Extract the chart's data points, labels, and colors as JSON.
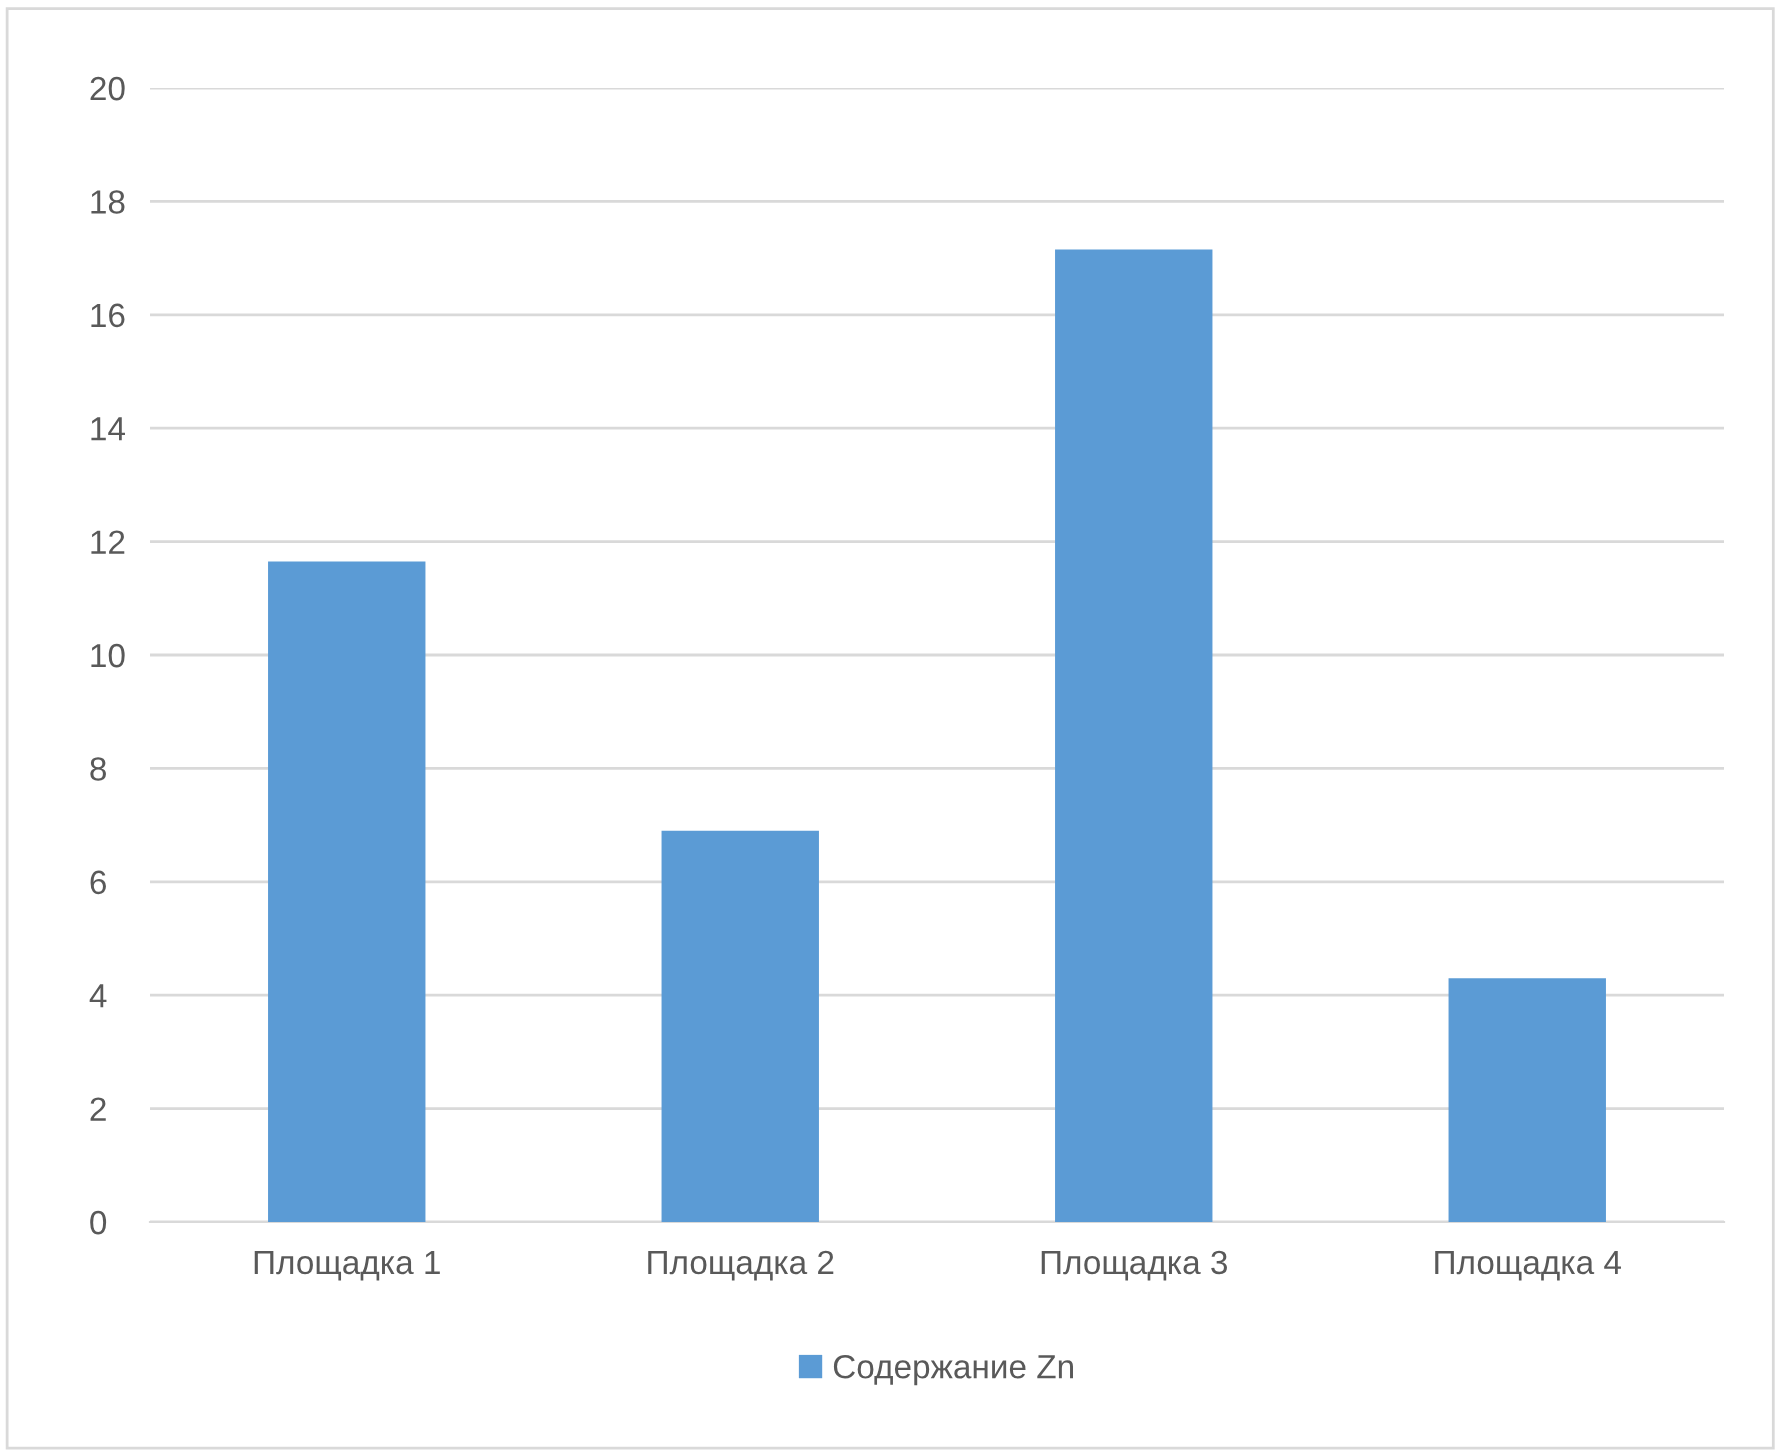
{
  "chart_data": {
    "type": "bar",
    "categories": [
      "Площадка 1",
      "Площадка 2",
      "Площадка 3",
      "Площадка 4"
    ],
    "series": [
      {
        "name": "Содержание Zn",
        "color": "#5b9bd5",
        "values": [
          11.65,
          6.9,
          17.15,
          4.3
        ]
      }
    ],
    "ylim": [
      0,
      20
    ],
    "yticks": [
      0,
      2,
      4,
      6,
      8,
      10,
      12,
      14,
      16,
      18,
      20
    ],
    "grid": "y",
    "legend": "bottom"
  }
}
